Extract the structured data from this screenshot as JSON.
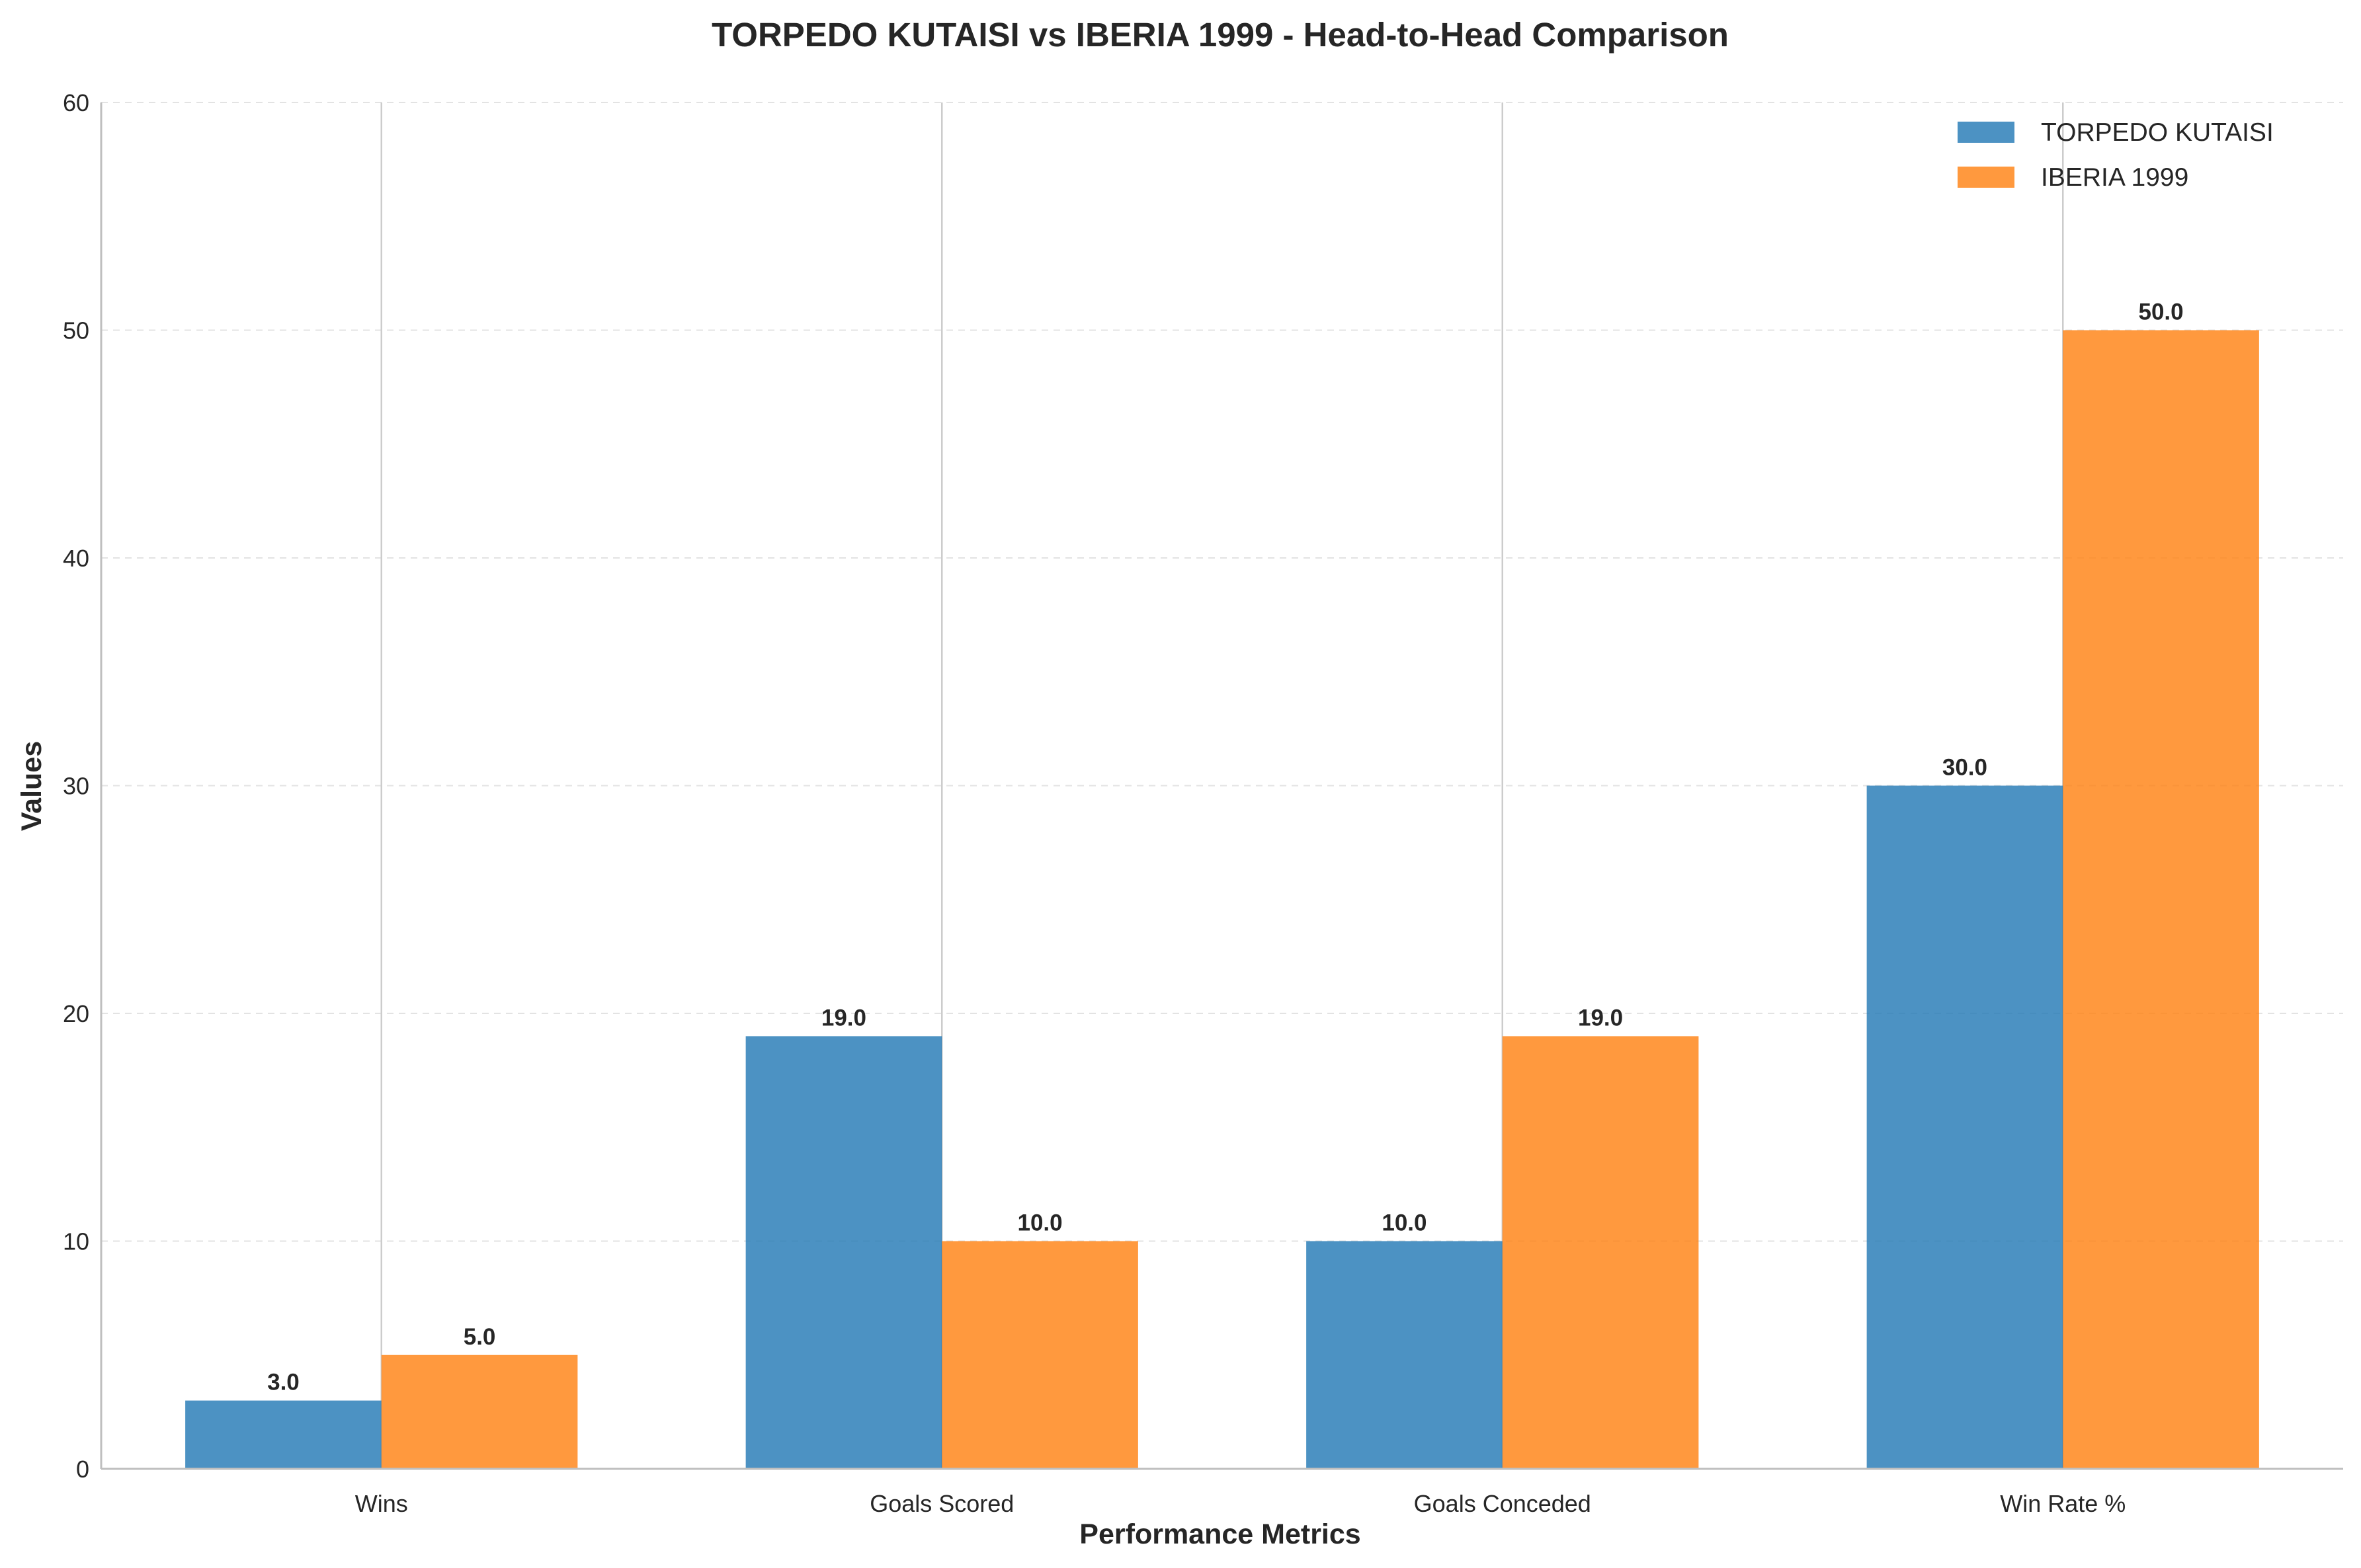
{
  "chart_data": {
    "type": "bar",
    "title": "TORPEDO KUTAISI vs IBERIA 1999 - Head-to-Head Comparison",
    "xlabel": "Performance Metrics",
    "ylabel": "Values",
    "categories": [
      "Wins",
      "Goals Scored",
      "Goals Conceded",
      "Win Rate %"
    ],
    "series": [
      {
        "name": "TORPEDO KUTAISI",
        "values": [
          3.0,
          19.0,
          10.0,
          30.0
        ],
        "color": "#1f77b4",
        "labels": [
          "3.0",
          "19.0",
          "10.0",
          "30.0"
        ]
      },
      {
        "name": "IBERIA 1999",
        "values": [
          5.0,
          10.0,
          19.0,
          50.0
        ],
        "color": "#ff7f0e",
        "labels": [
          "5.0",
          "10.0",
          "19.0",
          "50.0"
        ]
      }
    ],
    "ylim": [
      0,
      60
    ],
    "yticks": [
      0,
      10,
      20,
      30,
      40,
      50,
      60
    ],
    "ytick_labels": [
      "0",
      "10",
      "20",
      "30",
      "40",
      "50",
      "60"
    ],
    "grid": true,
    "legend_position": "top-right"
  }
}
